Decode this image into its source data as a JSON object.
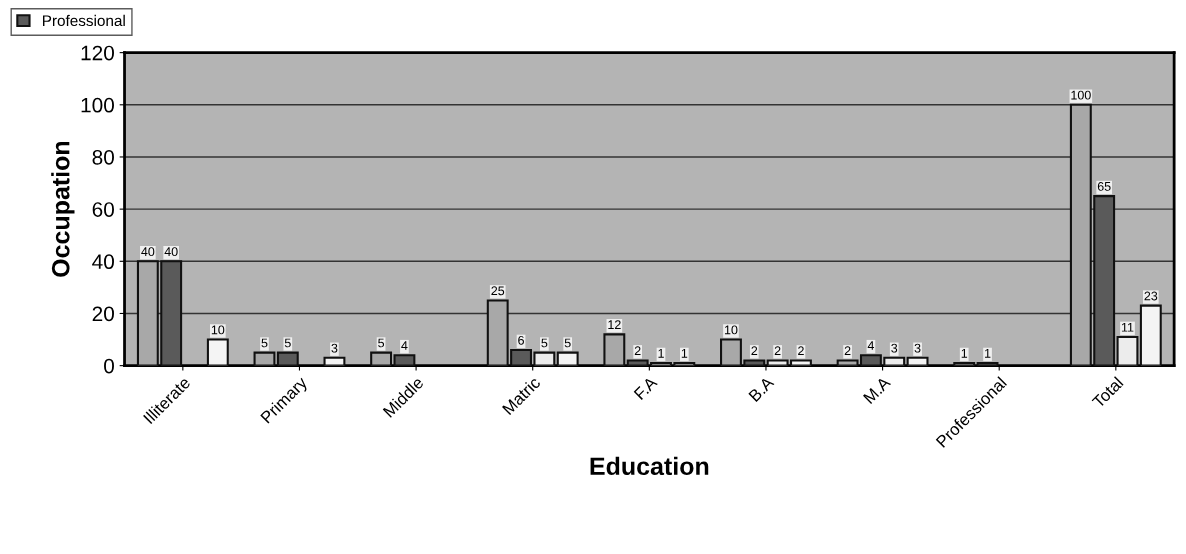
{
  "chart_data": {
    "type": "bar",
    "xlabel": "Education",
    "ylabel": "Occupation",
    "categories": [
      "Illiterate",
      "Primary",
      "Middle",
      "Matric",
      "F.A",
      "B.A",
      "M.A",
      "Professional",
      "Total"
    ],
    "series": [
      {
        "color": "#a8a8a8",
        "values": [
          40,
          5,
          5,
          25,
          12,
          10,
          2,
          1,
          100
        ]
      },
      {
        "name": "Professional",
        "color": "#5a5a5a",
        "values": [
          40,
          5,
          4,
          6,
          2,
          2,
          4,
          1,
          65
        ]
      },
      {
        "color": "#ececec",
        "values": [
          null,
          null,
          null,
          5,
          1,
          2,
          3,
          null,
          11
        ]
      },
      {
        "color": "#f4f4f4",
        "values": [
          10,
          3,
          null,
          5,
          1,
          2,
          3,
          null,
          23
        ]
      }
    ],
    "ylim": [
      0,
      120
    ],
    "yticks": [
      0,
      20,
      40,
      60,
      80,
      100,
      120
    ],
    "grid": "y",
    "legend": "top left",
    "data_labels": true
  }
}
